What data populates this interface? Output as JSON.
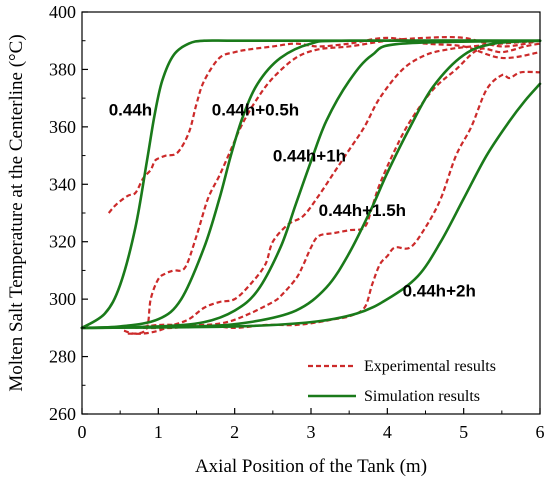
{
  "chart_data": {
    "type": "line",
    "xlabel": "Axial Position of the Tank (m)",
    "ylabel": "Molten Salt Temperature at the Centerline (°C)",
    "xlim": [
      0,
      6
    ],
    "ylim": [
      260,
      400
    ],
    "xticks": [
      "0",
      "1",
      "2",
      "3",
      "4",
      "5",
      "6"
    ],
    "yticks": [
      "260",
      "280",
      "300",
      "320",
      "340",
      "360",
      "380",
      "400"
    ],
    "legend": {
      "position": "bottom-right",
      "entries": [
        {
          "label": "Experimental results",
          "style": "dashed",
          "color": "#cc2a2a"
        },
        {
          "label": "Simulation results",
          "style": "solid",
          "color": "#1a7a1a"
        }
      ]
    },
    "annotations": [
      {
        "text": "0.44h",
        "x": 0.35,
        "y": 364
      },
      {
        "text": "0.44h+0.5h",
        "x": 1.7,
        "y": 364
      },
      {
        "text": "0.44h+1h",
        "x": 2.5,
        "y": 348
      },
      {
        "text": "0.44h+1.5h",
        "x": 3.1,
        "y": 329
      },
      {
        "text": "0.44h+2h",
        "x": 4.2,
        "y": 301
      }
    ],
    "series": [
      {
        "group": "simulation",
        "time": "0.44h",
        "color": "#1a7a1a",
        "x": [
          0,
          0.3,
          0.5,
          0.7,
          0.85,
          0.95,
          1.05,
          1.2,
          1.4,
          1.6,
          2.0,
          3.0,
          6.0
        ],
        "y": [
          290,
          295,
          305,
          325,
          348,
          364,
          376,
          385,
          389,
          390,
          390,
          390,
          390
        ]
      },
      {
        "group": "simulation",
        "time": "0.44h+0.5h",
        "color": "#1a7a1a",
        "x": [
          0,
          0.5,
          1.0,
          1.3,
          1.6,
          1.8,
          1.95,
          2.1,
          2.3,
          2.6,
          3.0,
          3.5,
          6.0
        ],
        "y": [
          290,
          290.5,
          293,
          300,
          318,
          335,
          350,
          363,
          375,
          384,
          389,
          390,
          390
        ]
      },
      {
        "group": "simulation",
        "time": "0.44h+1h",
        "color": "#1a7a1a",
        "x": [
          0,
          1.0,
          1.6,
          2.0,
          2.3,
          2.6,
          2.8,
          3.0,
          3.2,
          3.5,
          3.8,
          4.2,
          6.0
        ],
        "y": [
          290,
          290.5,
          292,
          296,
          303,
          318,
          333,
          348,
          362,
          376,
          385,
          389,
          390
        ]
      },
      {
        "group": "simulation",
        "time": "0.44h+1.5h",
        "color": "#1a7a1a",
        "x": [
          0,
          1.5,
          2.2,
          2.8,
          3.2,
          3.5,
          3.8,
          4.0,
          4.3,
          4.6,
          5.0,
          5.4,
          6.0
        ],
        "y": [
          290,
          290.5,
          292,
          296,
          304,
          316,
          332,
          344,
          360,
          374,
          385,
          389,
          390
        ]
      },
      {
        "group": "simulation",
        "time": "0.44h+2h",
        "color": "#1a7a1a",
        "x": [
          0,
          2.0,
          3.0,
          3.6,
          4.0,
          4.4,
          4.7,
          5.0,
          5.3,
          5.6,
          5.8,
          6.0
        ],
        "y": [
          290,
          290.5,
          292,
          295,
          300,
          308,
          320,
          335,
          350,
          362,
          369,
          375
        ]
      },
      {
        "group": "experimental",
        "time": "0.44h",
        "color": "#cc2a2a",
        "x": [
          0.35,
          0.45,
          0.6,
          0.7,
          0.8,
          0.9,
          0.95,
          1.0,
          1.1,
          1.25,
          1.4,
          1.5,
          1.6,
          1.8,
          2.0,
          2.2,
          2.5,
          2.8,
          3.1,
          3.5,
          4.0,
          4.5,
          5.0,
          5.5,
          6.0
        ],
        "y": [
          330,
          333,
          336,
          337,
          342,
          345,
          348,
          349,
          350,
          351,
          358,
          368,
          376,
          384,
          386,
          387,
          388,
          389,
          388,
          389,
          391,
          389,
          388,
          384,
          386
        ]
      },
      {
        "group": "experimental",
        "time": "0.44h+0.5h",
        "color": "#cc2a2a",
        "x": [
          0.55,
          0.7,
          0.85,
          0.9,
          1.0,
          1.1,
          1.2,
          1.35,
          1.5,
          1.65,
          1.8,
          1.95,
          2.1,
          2.3,
          2.5,
          2.8,
          3.1,
          3.5,
          4.0,
          4.5,
          5.0,
          5.5,
          6.0
        ],
        "y": [
          289,
          288,
          290,
          300,
          307,
          309,
          310,
          311,
          322,
          335,
          343,
          352,
          361,
          370,
          377,
          384,
          387,
          388,
          390,
          391,
          391,
          388,
          390
        ]
      },
      {
        "group": "experimental",
        "time": "0.44h+1h",
        "color": "#cc2a2a",
        "x": [
          0.6,
          0.8,
          1.0,
          1.2,
          1.4,
          1.6,
          1.8,
          2.0,
          2.2,
          2.4,
          2.5,
          2.7,
          2.9,
          3.1,
          3.3,
          3.5,
          3.7,
          3.9,
          4.2,
          4.5,
          4.8,
          5.1,
          5.5,
          6.0
        ],
        "y": [
          288,
          288,
          289,
          291,
          293,
          297,
          299,
          300,
          305,
          312,
          320,
          326,
          329,
          336,
          344,
          352,
          360,
          370,
          380,
          385,
          387,
          388,
          389,
          390
        ]
      },
      {
        "group": "experimental",
        "time": "0.44h+1.5h",
        "color": "#cc2a2a",
        "x": [
          0.7,
          1.0,
          1.3,
          1.6,
          1.9,
          2.2,
          2.5,
          2.6,
          2.8,
          2.9,
          3.0,
          3.1,
          3.3,
          3.5,
          3.7,
          3.8,
          3.9,
          4.1,
          4.3,
          4.6,
          4.9,
          5.2,
          5.5,
          5.8,
          6.0
        ],
        "y": [
          290,
          291,
          291,
          291,
          292,
          295,
          299,
          301,
          307,
          312,
          318,
          322,
          323,
          324,
          325,
          332,
          340,
          352,
          362,
          373,
          380,
          387,
          386,
          388,
          389
        ]
      },
      {
        "group": "experimental",
        "time": "0.44h+2h",
        "color": "#cc2a2a",
        "x": [
          0.8,
          1.2,
          1.6,
          2.0,
          2.4,
          2.8,
          3.1,
          3.3,
          3.5,
          3.7,
          3.8,
          3.9,
          4.0,
          4.1,
          4.3,
          4.5,
          4.7,
          4.9,
          5.1,
          5.3,
          5.5,
          5.6,
          5.75,
          6.0
        ],
        "y": [
          290,
          290,
          291,
          290,
          291,
          291,
          292,
          293,
          294,
          297,
          305,
          312,
          315,
          318,
          318,
          325,
          335,
          350,
          360,
          373,
          378,
          377,
          379,
          379
        ]
      }
    ]
  }
}
